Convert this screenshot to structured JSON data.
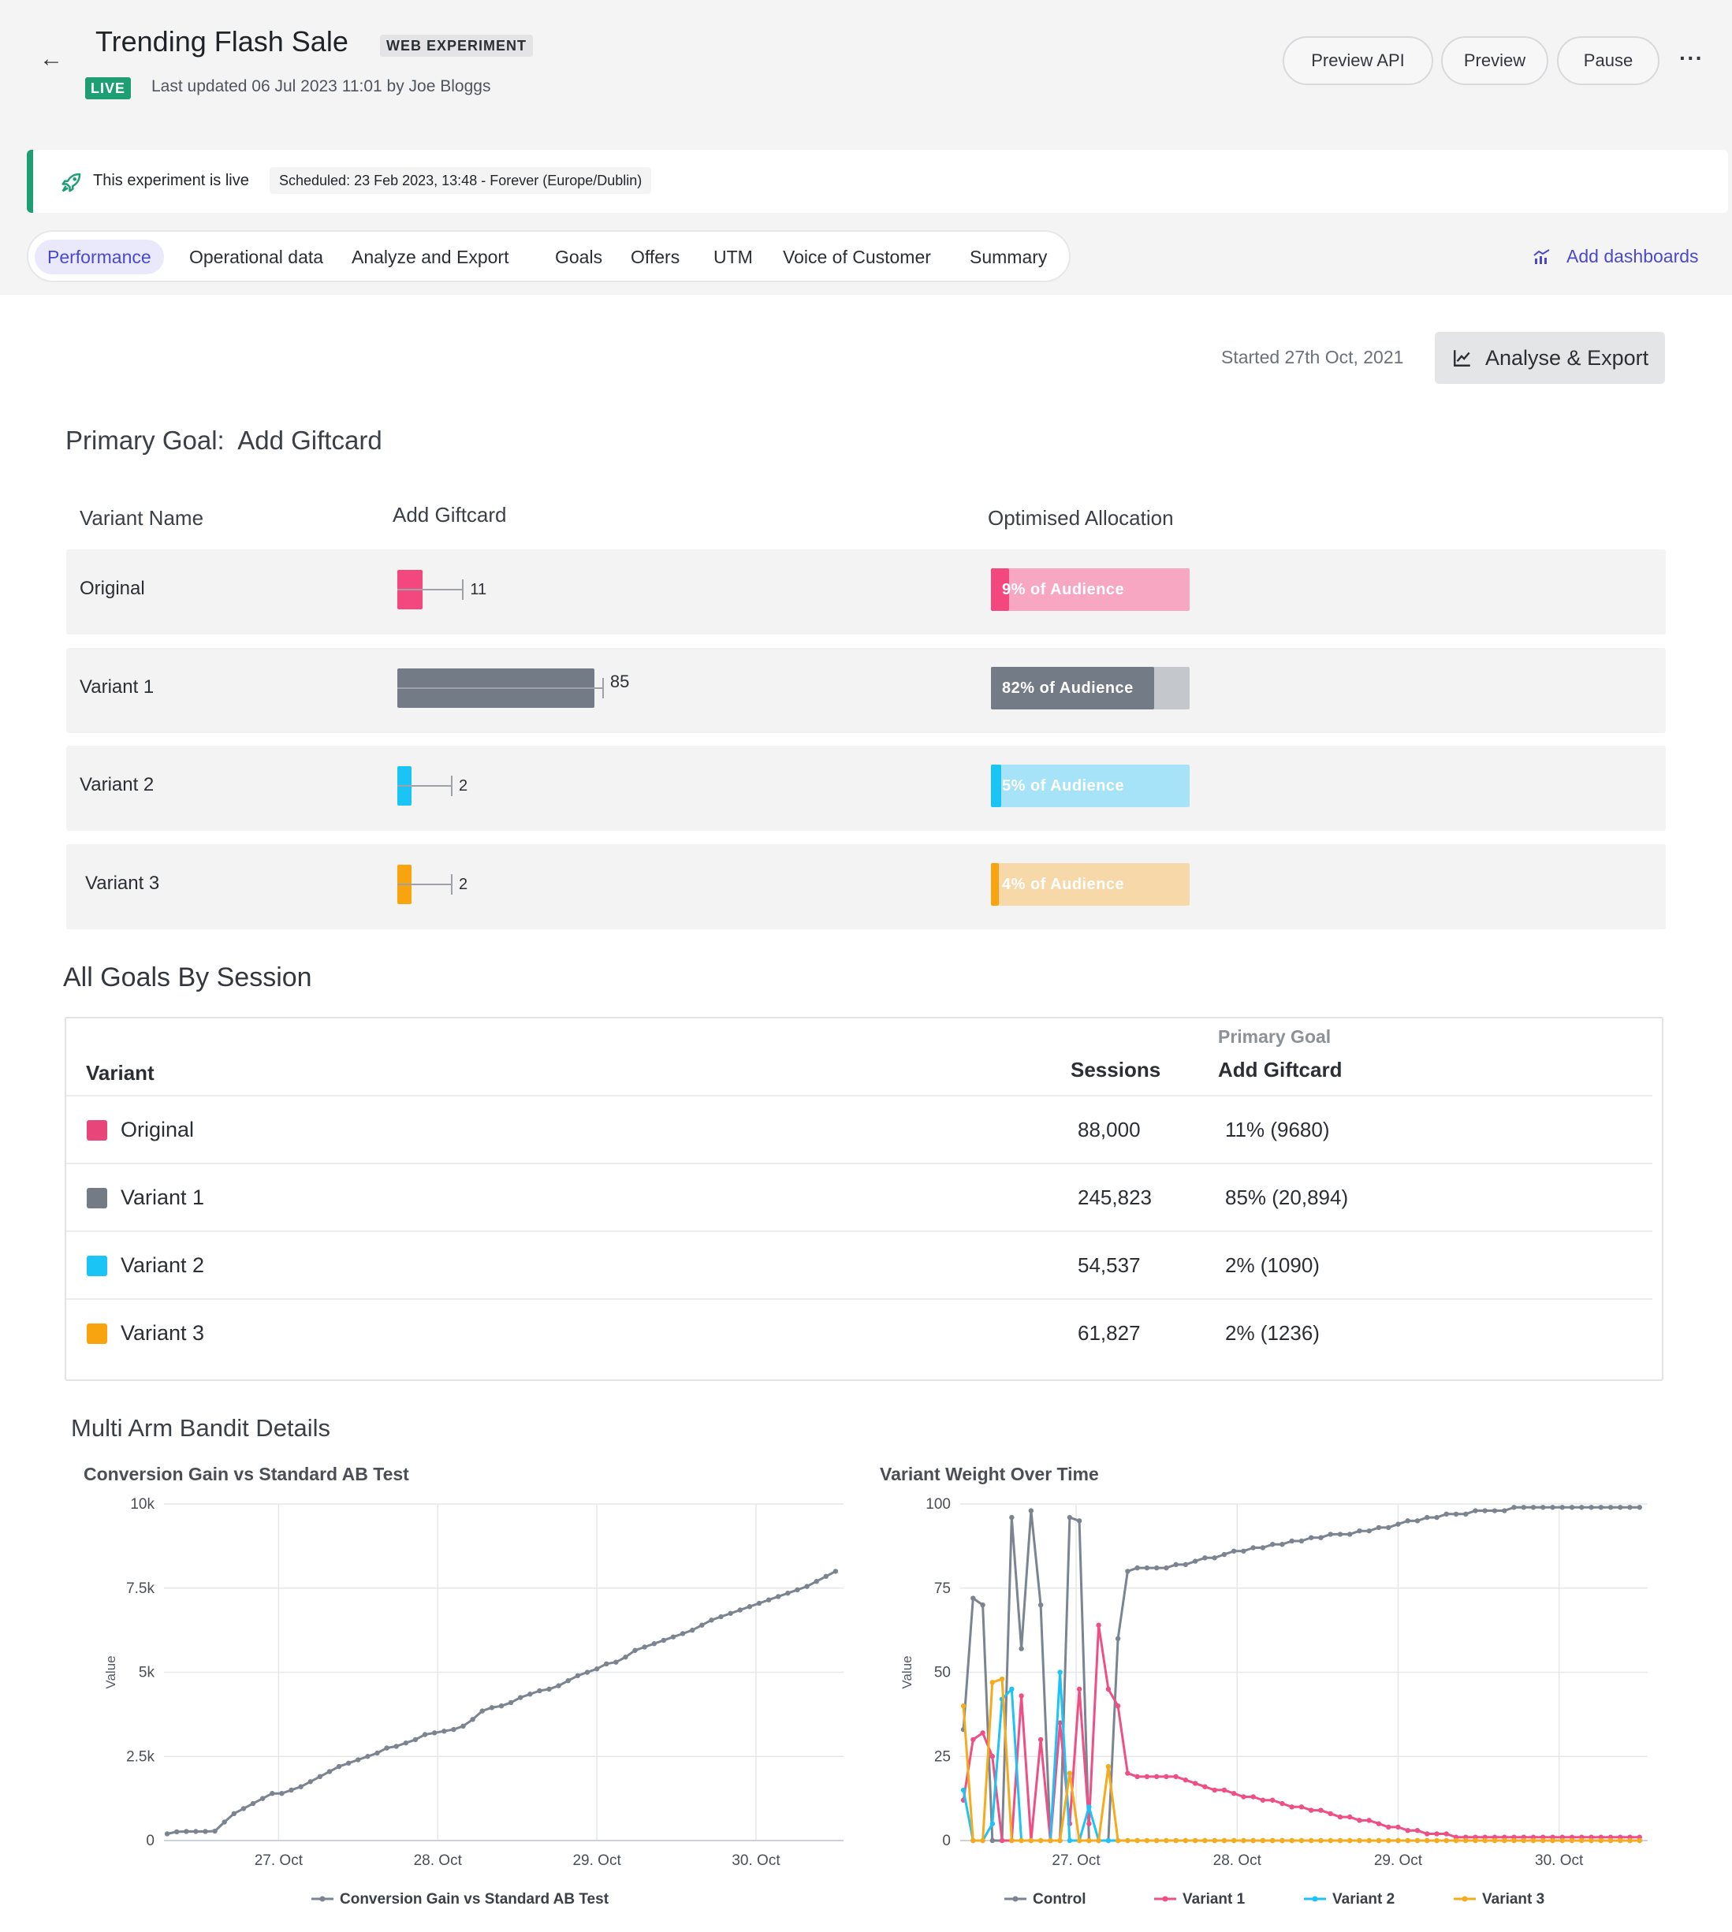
{
  "header": {
    "title": "Trending Flash Sale",
    "type_badge": "WEB EXPERIMENT",
    "status": "LIVE",
    "last_updated": "Last updated 06 Jul 2023 11:01 by Joe Bloggs",
    "buttons": {
      "preview_api": "Preview API",
      "preview": "Preview",
      "pause": "Pause",
      "more": "···"
    }
  },
  "banner": {
    "text": "This experiment is live",
    "schedule": "Scheduled: 23 Feb 2023, 13:48 - Forever (Europe/Dublin)"
  },
  "tabs": [
    "Performance",
    "Operational data",
    "Analyze and Export",
    "Goals",
    "Offers",
    "UTM",
    "Voice of Customer",
    "Summary"
  ],
  "active_tab": "Performance",
  "add_dashboards": "Add dashboards",
  "started": "Started 27th Oct, 2021",
  "analyse_export": "Analyse & Export",
  "primary_goal": {
    "label": "Primary Goal:",
    "goal": "Add Giftcard",
    "columns": [
      "Variant Name",
      "Add Giftcard",
      "Optimised Allocation"
    ],
    "rows": [
      {
        "name": "Original",
        "value": 11,
        "value_label": "11",
        "audience_label": "9% of Audience",
        "audience_pct": 9,
        "color": "#f2477f",
        "light": "#f8a7c2"
      },
      {
        "name": "Variant 1",
        "value": 85,
        "value_label": "85",
        "audience_label": "82% of Audience",
        "audience_pct": 82,
        "color": "#737b86",
        "light": "#c4c7cc"
      },
      {
        "name": "Variant 2",
        "value": 2,
        "value_label": "2",
        "audience_label": "5% of Audience",
        "audience_pct": 5,
        "color": "#1ac5f5",
        "light": "#a6e3f8"
      },
      {
        "name": "Variant 3",
        "value": 2,
        "value_label": "2",
        "audience_label": "4% of Audience",
        "audience_pct": 4,
        "color": "#f7a40e",
        "light": "#f7d8a8"
      }
    ]
  },
  "all_goals": {
    "title": "All Goals By Session",
    "col_variant": "Variant",
    "col_sessions": "Sessions",
    "col_primary_goal": "Primary Goal",
    "col_goal_name": "Add Giftcard",
    "rows": [
      {
        "name": "Original",
        "sessions": "88,000",
        "goal": "11% (9680)",
        "color": "#e8457b"
      },
      {
        "name": "Variant 1",
        "sessions": "245,823",
        "goal": "85% (20,894)",
        "color": "#737b86"
      },
      {
        "name": "Variant 2",
        "sessions": "54,537",
        "goal": "2% (1090)",
        "color": "#1ac5f5"
      },
      {
        "name": "Variant 3",
        "sessions": "61,827",
        "goal": "2% (1236)",
        "color": "#f7a40e"
      }
    ]
  },
  "mab": {
    "title": "Multi Arm Bandit Details"
  },
  "chart_data": [
    {
      "type": "line",
      "title": "Conversion Gain vs Standard AB Test",
      "ylabel": "Value",
      "ylim": [
        0,
        10000
      ],
      "yticks": [
        "0",
        "2.5k",
        "5k",
        "7.5k",
        "10k"
      ],
      "xlim": [
        26.28,
        30.55
      ],
      "xticks": [
        "27. Oct",
        "28. Oct",
        "29. Oct",
        "30. Oct"
      ],
      "series": [
        {
          "name": "Conversion Gain vs Standard AB Test",
          "color": "#7b8490",
          "x": [
            26.3,
            26.36,
            26.42,
            26.48,
            26.54,
            26.6,
            26.66,
            26.72,
            26.78,
            26.84,
            26.9,
            26.96,
            27.02,
            27.08,
            27.14,
            27.2,
            27.26,
            27.32,
            27.38,
            27.44,
            27.5,
            27.56,
            27.62,
            27.68,
            27.74,
            27.8,
            27.86,
            27.92,
            27.98,
            28.04,
            28.1,
            28.16,
            28.22,
            28.28,
            28.34,
            28.4,
            28.46,
            28.52,
            28.58,
            28.64,
            28.7,
            28.76,
            28.82,
            28.88,
            28.94,
            29.0,
            29.06,
            29.12,
            29.18,
            29.24,
            29.3,
            29.36,
            29.42,
            29.48,
            29.54,
            29.6,
            29.66,
            29.72,
            29.78,
            29.84,
            29.9,
            29.96,
            30.02,
            30.08,
            30.14,
            30.2,
            30.26,
            30.32,
            30.38,
            30.44,
            30.5
          ],
          "values": [
            200,
            260,
            270,
            270,
            270,
            280,
            550,
            800,
            950,
            1100,
            1250,
            1400,
            1400,
            1500,
            1600,
            1750,
            1900,
            2050,
            2200,
            2300,
            2400,
            2500,
            2600,
            2750,
            2800,
            2900,
            3000,
            3150,
            3200,
            3250,
            3300,
            3400,
            3600,
            3850,
            3950,
            4000,
            4100,
            4250,
            4350,
            4450,
            4500,
            4600,
            4750,
            4900,
            5000,
            5100,
            5250,
            5300,
            5450,
            5650,
            5750,
            5850,
            5950,
            6050,
            6150,
            6250,
            6400,
            6550,
            6650,
            6750,
            6850,
            6950,
            7050,
            7150,
            7250,
            7350,
            7450,
            7550,
            7700,
            7850,
            8000
          ]
        }
      ]
    },
    {
      "type": "line",
      "title": "Variant Weight Over Time",
      "ylabel": "Value",
      "ylim": [
        0,
        100
      ],
      "yticks": [
        "0",
        "25",
        "50",
        "75",
        "100"
      ],
      "xlim": [
        26.28,
        30.55
      ],
      "xticks": [
        "27. Oct",
        "28. Oct",
        "29. Oct",
        "30. Oct"
      ],
      "x": [
        26.3,
        26.36,
        26.42,
        26.48,
        26.54,
        26.6,
        26.66,
        26.72,
        26.78,
        26.84,
        26.9,
        26.96,
        27.02,
        27.08,
        27.14,
        27.2,
        27.26,
        27.32,
        27.38,
        27.44,
        27.5,
        27.56,
        27.62,
        27.68,
        27.74,
        27.8,
        27.86,
        27.92,
        27.98,
        28.04,
        28.1,
        28.16,
        28.22,
        28.28,
        28.34,
        28.4,
        28.46,
        28.52,
        28.58,
        28.64,
        28.7,
        28.76,
        28.82,
        28.88,
        28.94,
        29.0,
        29.06,
        29.12,
        29.18,
        29.24,
        29.3,
        29.36,
        29.42,
        29.48,
        29.54,
        29.6,
        29.66,
        29.72,
        29.78,
        29.84,
        29.9,
        29.96,
        30.02,
        30.08,
        30.14,
        30.2,
        30.26,
        30.32,
        30.38,
        30.44,
        30.5
      ],
      "series": [
        {
          "name": "Control",
          "color": "#7b8490",
          "values": [
            33,
            72,
            70,
            0,
            0,
            96,
            57,
            98,
            70,
            0,
            0,
            96,
            95,
            0,
            0,
            0,
            60,
            80,
            81,
            81,
            81,
            81,
            82,
            82,
            83,
            84,
            84,
            85,
            86,
            86,
            87,
            87,
            88,
            88,
            89,
            89,
            90,
            90,
            91,
            91,
            91,
            92,
            92,
            93,
            93,
            94,
            95,
            95,
            96,
            96,
            97,
            97,
            97,
            98,
            98,
            98,
            98,
            99,
            99,
            99,
            99,
            99,
            99,
            99,
            99,
            99,
            99,
            99,
            99,
            99,
            99
          ]
        },
        {
          "name": "Variant 1",
          "color": "#ee4f85",
          "values": [
            12,
            30,
            32,
            25,
            0,
            0,
            43,
            0,
            30,
            0,
            35,
            5,
            45,
            5,
            64,
            45,
            40,
            20,
            19,
            19,
            19,
            19,
            19,
            18,
            17,
            16,
            15,
            15,
            14,
            13,
            13,
            12,
            12,
            11,
            10,
            10,
            9,
            9,
            8,
            7,
            7,
            6,
            6,
            5,
            4,
            4,
            3,
            3,
            2,
            2,
            2,
            1,
            1,
            1,
            1,
            1,
            1,
            1,
            1,
            1,
            1,
            1,
            1,
            1,
            1,
            1,
            1,
            1,
            1,
            1,
            1
          ]
        },
        {
          "name": "Variant 2",
          "color": "#1fc3f3",
          "values": [
            15,
            0,
            0,
            5,
            42,
            45,
            0,
            0,
            0,
            0,
            50,
            0,
            0,
            10,
            0,
            0,
            0,
            0,
            0,
            0,
            0,
            0,
            0,
            0,
            0,
            0,
            0,
            0,
            0,
            0,
            0,
            0,
            0,
            0,
            0,
            0,
            0,
            0,
            0,
            0,
            0,
            0,
            0,
            0,
            0,
            0,
            0,
            0,
            0,
            0,
            0,
            0,
            0,
            0,
            0,
            0,
            0,
            0,
            0,
            0,
            0,
            0,
            0,
            0,
            0,
            0,
            0,
            0,
            0,
            0,
            0
          ]
        },
        {
          "name": "Variant 3",
          "color": "#f5ab1b",
          "values": [
            40,
            0,
            0,
            47,
            48,
            0,
            0,
            0,
            0,
            0,
            0,
            20,
            0,
            0,
            0,
            22,
            0,
            0,
            0,
            0,
            0,
            0,
            0,
            0,
            0,
            0,
            0,
            0,
            0,
            0,
            0,
            0,
            0,
            0,
            0,
            0,
            0,
            0,
            0,
            0,
            0,
            0,
            0,
            0,
            0,
            0,
            0,
            0,
            0,
            0,
            0,
            0,
            0,
            0,
            0,
            0,
            0,
            0,
            0,
            0,
            0,
            0,
            0,
            0,
            0,
            0,
            0,
            0,
            0,
            0,
            0
          ]
        }
      ]
    }
  ]
}
